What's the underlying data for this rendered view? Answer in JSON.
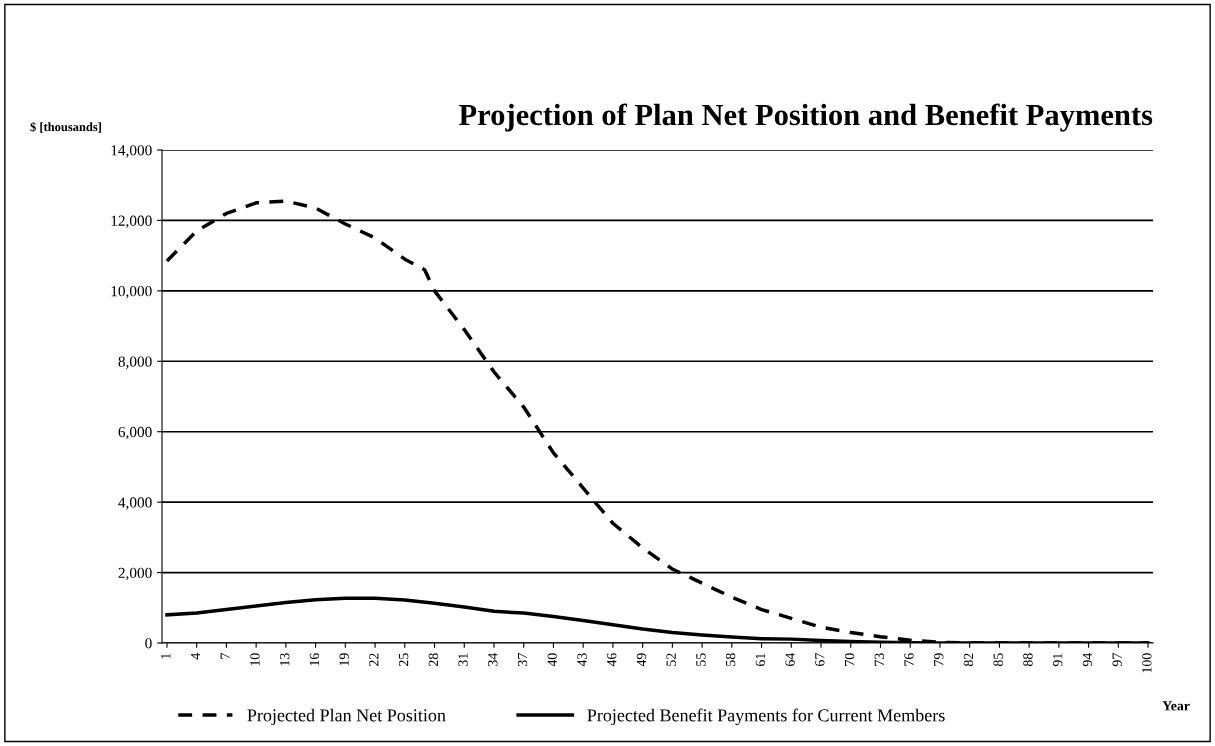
{
  "chart_data": {
    "type": "line",
    "title": "Projection of Plan Net Position and Benefit Payments",
    "ylabel": "$ [thousands]",
    "xlabel": "Year",
    "xlim": [
      0.5,
      100.5
    ],
    "xticks": [
      1,
      4,
      7,
      10,
      13,
      16,
      19,
      22,
      25,
      28,
      31,
      34,
      37,
      40,
      43,
      46,
      49,
      52,
      55,
      58,
      61,
      64,
      67,
      70,
      73,
      76,
      79,
      82,
      85,
      88,
      91,
      94,
      97,
      100
    ],
    "ylim": [
      0,
      14000
    ],
    "yticks": [
      {
        "value": 0,
        "label": "0"
      },
      {
        "value": 2000,
        "label": "2,000"
      },
      {
        "value": 4000,
        "label": "4,000"
      },
      {
        "value": 6000,
        "label": "6,000"
      },
      {
        "value": 8000,
        "label": "8,000"
      },
      {
        "value": 10000,
        "label": "10,000"
      },
      {
        "value": 12000,
        "label": "12,000"
      },
      {
        "value": 14000,
        "label": "14,000"
      }
    ],
    "grid": "y",
    "legend": "bottom",
    "marker": "none",
    "series": [
      {
        "name": "Projected Plan Net Position",
        "color": "#000000",
        "line_style": "dashed",
        "x": [
          1,
          4,
          7,
          10,
          13,
          16,
          19,
          22,
          25,
          27,
          28,
          31,
          34,
          37,
          40,
          43,
          46,
          49,
          52,
          55,
          58,
          61,
          64,
          67,
          70,
          73,
          76,
          79,
          82,
          85,
          88,
          91,
          94,
          97,
          100
        ],
        "values": [
          10850,
          11700,
          12200,
          12500,
          12550,
          12350,
          11900,
          11500,
          10900,
          10600,
          10000,
          8900,
          7700,
          6700,
          5400,
          4400,
          3400,
          2700,
          2100,
          1700,
          1300,
          950,
          700,
          450,
          300,
          180,
          80,
          20,
          0,
          0,
          0,
          0,
          0,
          0,
          0
        ]
      },
      {
        "name": "Projected Benefit Payments for Current Members",
        "color": "#000000",
        "line_style": "solid",
        "x": [
          1,
          4,
          7,
          10,
          13,
          16,
          19,
          22,
          25,
          28,
          31,
          34,
          37,
          40,
          43,
          46,
          49,
          52,
          55,
          58,
          61,
          64,
          67,
          70,
          73,
          76,
          79,
          82,
          85,
          88,
          91,
          94,
          97,
          100
        ],
        "values": [
          800,
          850,
          950,
          1050,
          1150,
          1230,
          1270,
          1270,
          1220,
          1130,
          1020,
          900,
          850,
          750,
          640,
          520,
          400,
          300,
          230,
          170,
          120,
          110,
          70,
          40,
          20,
          10,
          0,
          0,
          0,
          0,
          0,
          0,
          0,
          0
        ]
      }
    ]
  }
}
